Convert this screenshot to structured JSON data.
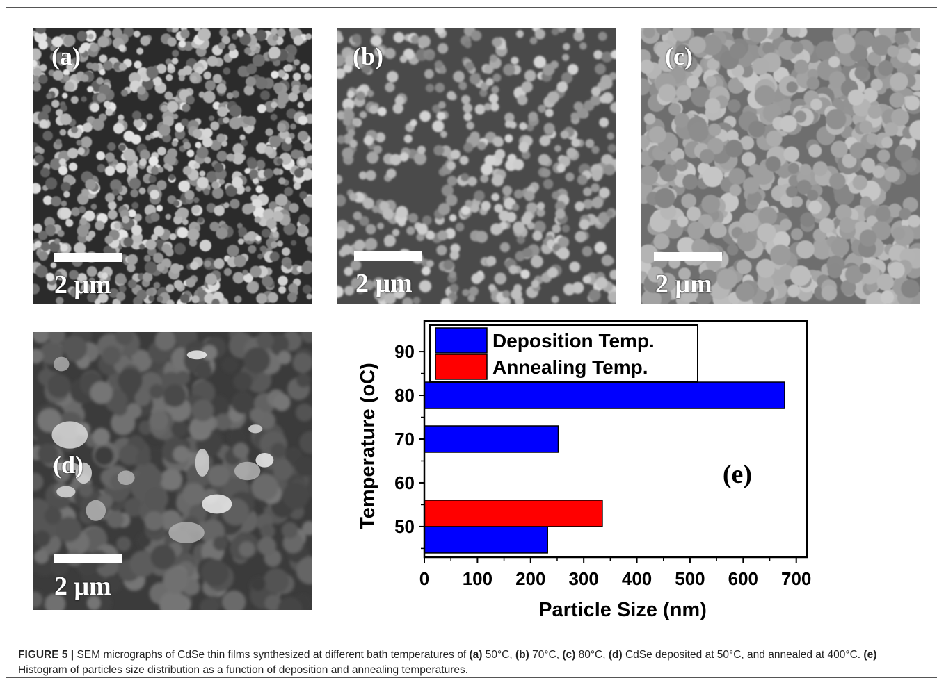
{
  "panels": [
    {
      "label": "(a)",
      "scale": "2 μm"
    },
    {
      "label": "(b)",
      "scale": "2 μm"
    },
    {
      "label": "(c)",
      "scale": "2 μm"
    },
    {
      "label": "(d)",
      "scale": "2 μm"
    }
  ],
  "chart_data": {
    "type": "bar",
    "orientation": "horizontal",
    "panel_label": "(e)",
    "xlabel": "Particle Size (nm)",
    "ylabel": "Temperature (oC)",
    "xlim": [
      0,
      720
    ],
    "ylim": [
      43,
      97
    ],
    "xticks": [
      0,
      100,
      200,
      300,
      400,
      500,
      600,
      700
    ],
    "yticks": [
      50,
      60,
      70,
      80,
      90
    ],
    "legend_position": "top-left",
    "series": [
      {
        "name": "Deposition Temp.",
        "color": "#0000ff",
        "points": [
          {
            "y": 50,
            "x": 232
          },
          {
            "y": 70,
            "x": 252
          },
          {
            "y": 80,
            "x": 678
          }
        ]
      },
      {
        "name": "Annealing Temp.",
        "color": "#ff0000",
        "points": [
          {
            "y": 50,
            "x": 335
          }
        ]
      }
    ]
  },
  "caption": {
    "figure_label": "FIGURE 5 |",
    "seg1": " SEM micrographs of CdSe thin films synthesized at different bath temperatures of ",
    "a": "(a)",
    "a_text": " 50°C, ",
    "b": "(b)",
    "b_text": " 70°C, ",
    "c": "(c)",
    "c_text": " 80°C, ",
    "d": "(d)",
    "d_text": " CdSe deposited at 50°C, and annealed at 400°C. ",
    "e": "(e)",
    "e_text": " Histogram of particles size distribution as a function of deposition and annealing temperatures."
  }
}
